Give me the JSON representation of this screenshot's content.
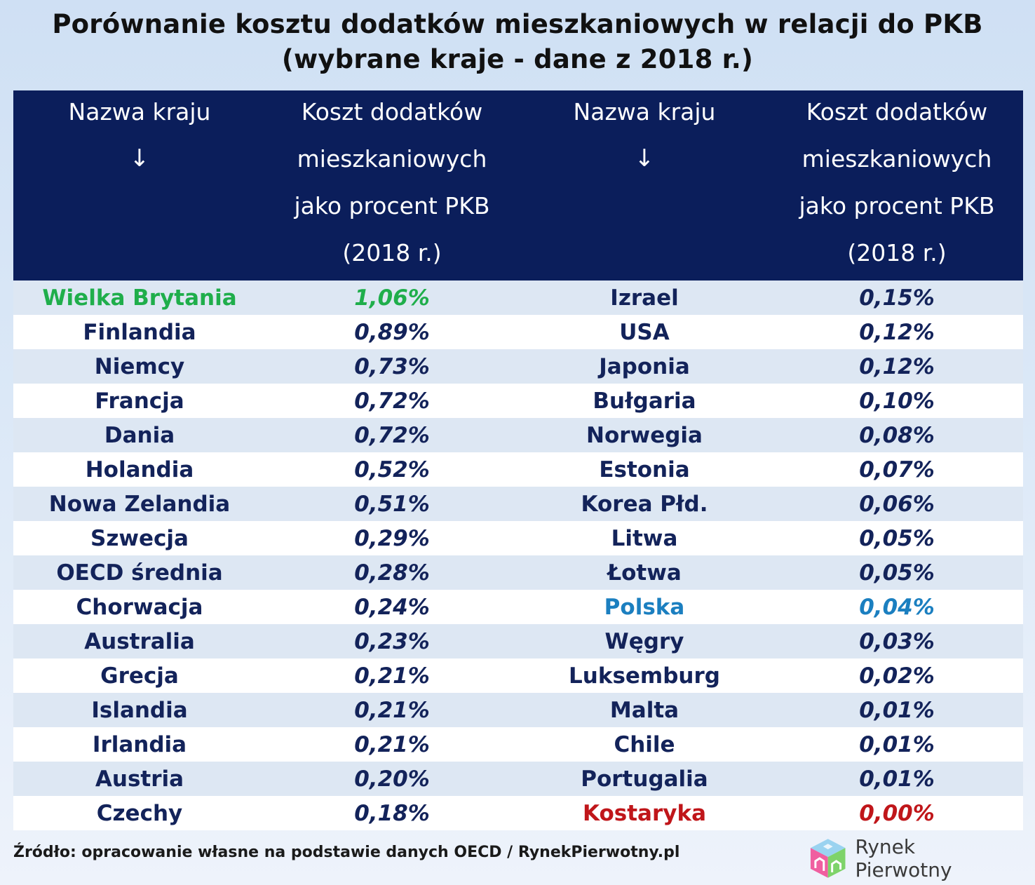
{
  "title": {
    "line1": "Porównanie kosztu dodatków mieszkaniowych w relacji do PKB",
    "line2": "(wybrane kraje - dane z 2018 r.)"
  },
  "header": {
    "col1": {
      "label": "Nazwa kraju",
      "arrow": "↓"
    },
    "col2": {
      "lines": [
        "Koszt dodatków",
        "mieszkaniowych",
        "jako procent PKB",
        "(2018 r.)"
      ]
    },
    "col3": {
      "label": "Nazwa kraju",
      "arrow": "↓"
    },
    "col4": {
      "lines": [
        "Koszt dodatków",
        "mieszkaniowych",
        "jako procent PKB",
        "(2018 r.)"
      ]
    }
  },
  "rows": [
    {
      "c1": "Wielka Brytania",
      "v1": "1,06%",
      "c2": "Izrael",
      "v2": "0,15%"
    },
    {
      "c1": "Finlandia",
      "v1": "0,89%",
      "c2": "USA",
      "v2": "0,12%"
    },
    {
      "c1": "Niemcy",
      "v1": "0,73%",
      "c2": "Japonia",
      "v2": "0,12%"
    },
    {
      "c1": "Francja",
      "v1": "0,72%",
      "c2": "Bułgaria",
      "v2": "0,10%"
    },
    {
      "c1": "Dania",
      "v1": "0,72%",
      "c2": "Norwegia",
      "v2": "0,08%"
    },
    {
      "c1": "Holandia",
      "v1": "0,52%",
      "c2": "Estonia",
      "v2": "0,07%"
    },
    {
      "c1": "Nowa Zelandia",
      "v1": "0,51%",
      "c2": "Korea Płd.",
      "v2": "0,06%"
    },
    {
      "c1": "Szwecja",
      "v1": "0,29%",
      "c2": "Litwa",
      "v2": "0,05%"
    },
    {
      "c1": "OECD średnia",
      "v1": "0,28%",
      "c2": "Łotwa",
      "v2": "0,05%"
    },
    {
      "c1": "Chorwacja",
      "v1": "0,24%",
      "c2": "Polska",
      "v2": "0,04%"
    },
    {
      "c1": "Australia",
      "v1": "0,23%",
      "c2": "Węgry",
      "v2": "0,03%"
    },
    {
      "c1": "Grecja",
      "v1": "0,21%",
      "c2": "Luksemburg",
      "v2": "0,02%"
    },
    {
      "c1": "Islandia",
      "v1": "0,21%",
      "c2": "Malta",
      "v2": "0,01%"
    },
    {
      "c1": "Irlandia",
      "v1": "0,21%",
      "c2": "Chile",
      "v2": "0,01%"
    },
    {
      "c1": "Austria",
      "v1": "0,20%",
      "c2": "Portugalia",
      "v2": "0,01%"
    },
    {
      "c1": "Czechy",
      "v1": "0,18%",
      "c2": "Kostaryka",
      "v2": "0,00%"
    }
  ],
  "highlight_colors": {
    "max": "#1fae4b",
    "poland": "#1b7fc0",
    "min": "#c0161a",
    "header_bg": "#0b1e5b",
    "text": "#13235a"
  },
  "footer": {
    "source": "Źródło: opracowanie własne na podstawie danych OECD / RynekPierwotny.pl"
  },
  "logo": {
    "text": "Rynek Pierwotny",
    "icon": "house-cube-logo-icon"
  }
}
